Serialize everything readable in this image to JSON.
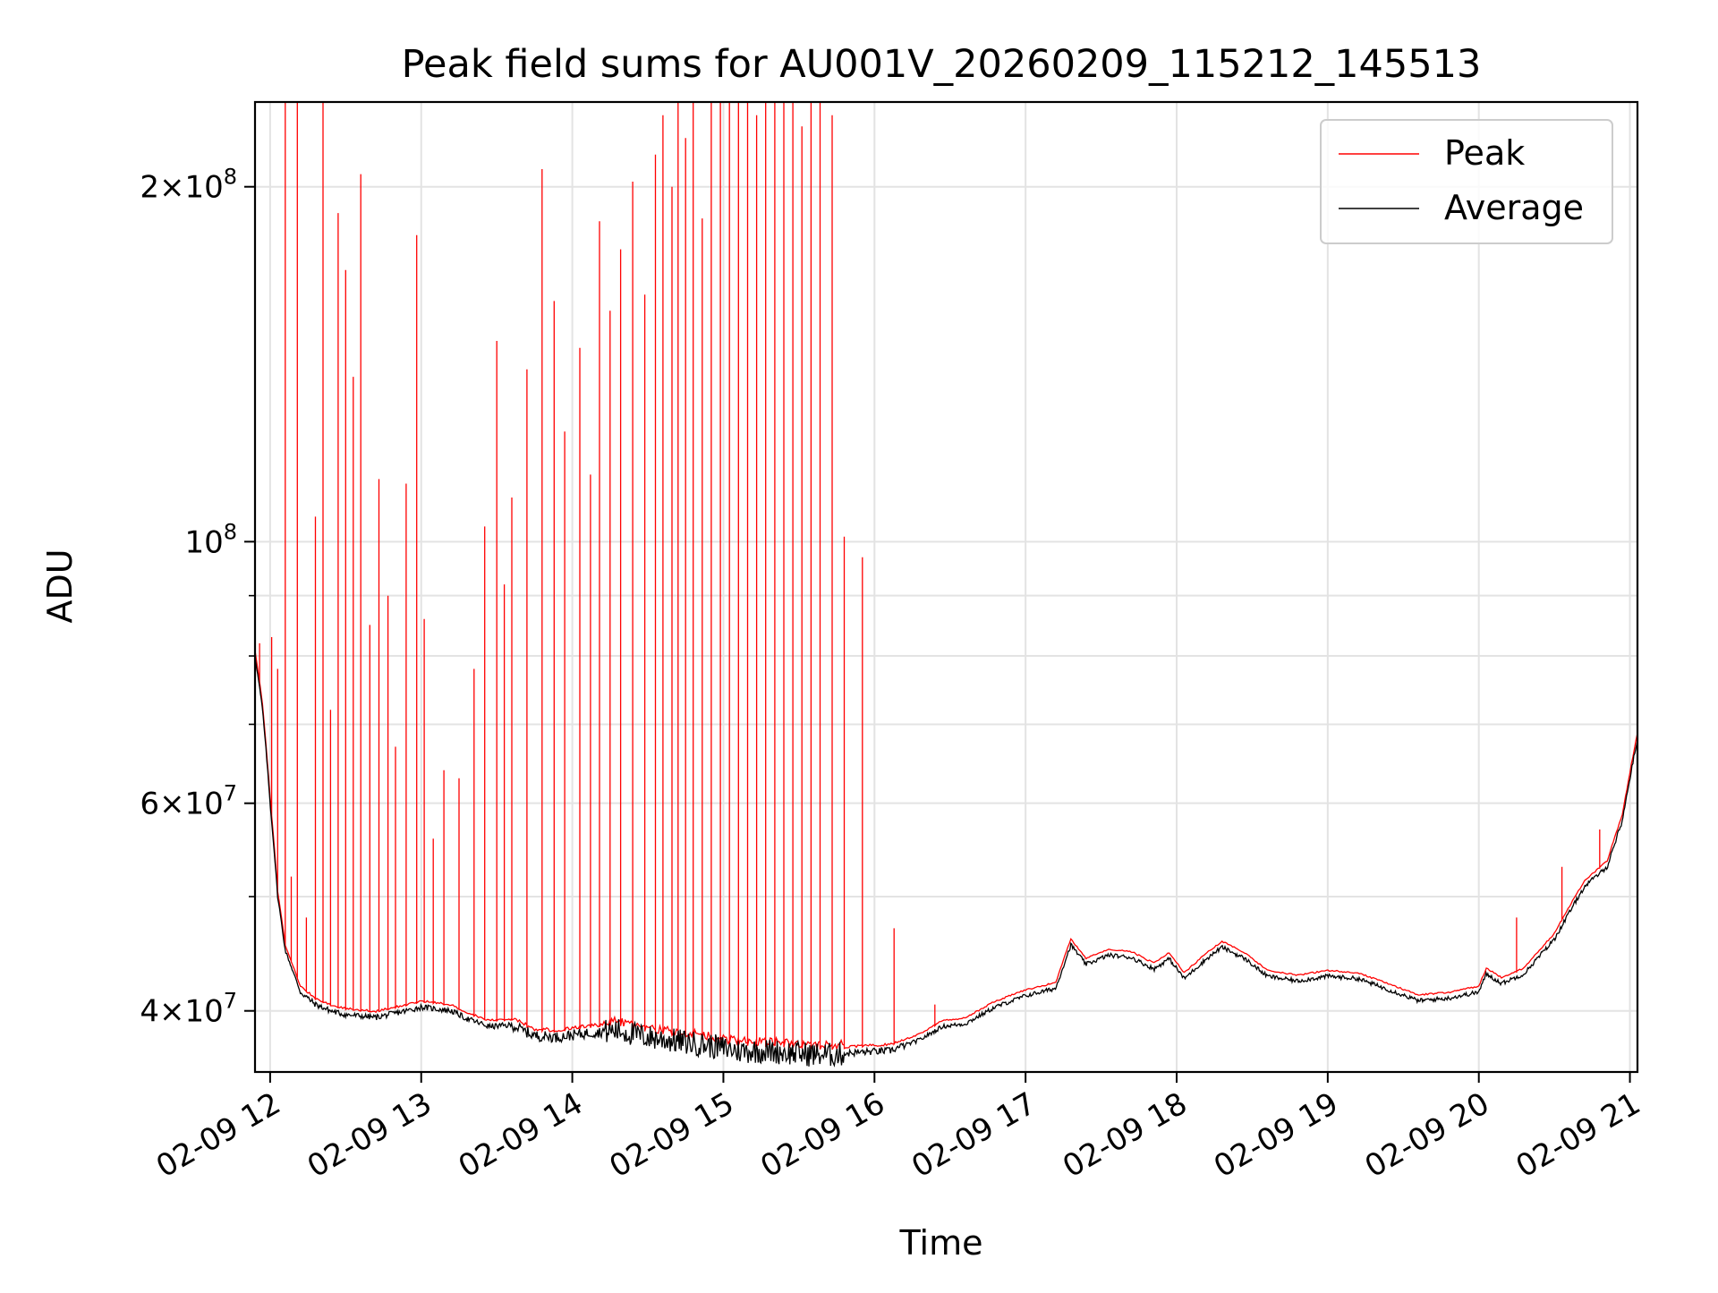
{
  "chart_data": {
    "type": "line",
    "title": "Peak field sums for AU001V_20260209_115212_145513",
    "xlabel": "Time",
    "ylabel": "ADU",
    "yscale": "log",
    "grid": true,
    "legend_position": "top-right",
    "x_unit": "hours (clock time on 02-09)",
    "xlim": [
      11.9,
      21.05
    ],
    "ylim": [
      35500000,
      236000000
    ],
    "x_ticks": [
      {
        "value": 12,
        "label": "02-09 12"
      },
      {
        "value": 13,
        "label": "02-09 13"
      },
      {
        "value": 14,
        "label": "02-09 14"
      },
      {
        "value": 15,
        "label": "02-09 15"
      },
      {
        "value": 16,
        "label": "02-09 16"
      },
      {
        "value": 17,
        "label": "02-09 17"
      },
      {
        "value": 18,
        "label": "02-09 18"
      },
      {
        "value": 19,
        "label": "02-09 19"
      },
      {
        "value": 20,
        "label": "02-09 20"
      },
      {
        "value": 21,
        "label": "02-09 21"
      }
    ],
    "y_ticks": [
      {
        "value": 40000000,
        "mantissa": "4",
        "base": "10",
        "exp": "7"
      },
      {
        "value": 60000000,
        "mantissa": "6",
        "base": "10",
        "exp": "7"
      },
      {
        "value": 100000000,
        "mantissa": "",
        "base": "10",
        "exp": "8"
      },
      {
        "value": 200000000,
        "mantissa": "2",
        "base": "10",
        "exp": "8"
      }
    ],
    "y_minor_ticks": [
      50000000,
      70000000,
      80000000,
      90000000
    ],
    "series": [
      {
        "name": "Peak",
        "color": "#ff0000",
        "baseline_from": "Average",
        "spikes": [
          [
            11.93,
            82000000
          ],
          [
            12.01,
            83000000
          ],
          [
            12.05,
            78000000
          ],
          [
            12.1,
            236000000
          ],
          [
            12.14,
            52000000
          ],
          [
            12.18,
            236000000
          ],
          [
            12.24,
            48000000
          ],
          [
            12.3,
            105000000
          ],
          [
            12.35,
            236000000
          ],
          [
            12.4,
            72000000
          ],
          [
            12.45,
            190000000
          ],
          [
            12.5,
            170000000
          ],
          [
            12.55,
            138000000
          ],
          [
            12.6,
            205000000
          ],
          [
            12.66,
            85000000
          ],
          [
            12.72,
            113000000
          ],
          [
            12.78,
            90000000
          ],
          [
            12.83,
            67000000
          ],
          [
            12.9,
            112000000
          ],
          [
            12.97,
            182000000
          ],
          [
            13.02,
            86000000
          ],
          [
            13.08,
            56000000
          ],
          [
            13.15,
            64000000
          ],
          [
            13.25,
            63000000
          ],
          [
            13.35,
            78000000
          ],
          [
            13.42,
            103000000
          ],
          [
            13.5,
            148000000
          ],
          [
            13.55,
            92000000
          ],
          [
            13.6,
            109000000
          ],
          [
            13.7,
            140000000
          ],
          [
            13.8,
            207000000
          ],
          [
            13.88,
            160000000
          ],
          [
            13.95,
            124000000
          ],
          [
            14.05,
            146000000
          ],
          [
            14.12,
            114000000
          ],
          [
            14.18,
            187000000
          ],
          [
            14.25,
            157000000
          ],
          [
            14.32,
            177000000
          ],
          [
            14.4,
            202000000
          ],
          [
            14.48,
            162000000
          ],
          [
            14.55,
            213000000
          ],
          [
            14.6,
            230000000
          ],
          [
            14.66,
            200000000
          ],
          [
            14.7,
            236000000
          ],
          [
            14.75,
            220000000
          ],
          [
            14.8,
            236000000
          ],
          [
            14.86,
            188000000
          ],
          [
            14.92,
            236000000
          ],
          [
            14.98,
            236000000
          ],
          [
            15.04,
            236000000
          ],
          [
            15.1,
            236000000
          ],
          [
            15.16,
            236000000
          ],
          [
            15.22,
            230000000
          ],
          [
            15.28,
            236000000
          ],
          [
            15.34,
            236000000
          ],
          [
            15.4,
            236000000
          ],
          [
            15.46,
            236000000
          ],
          [
            15.52,
            225000000
          ],
          [
            15.58,
            236000000
          ],
          [
            15.64,
            236000000
          ],
          [
            15.72,
            230000000
          ],
          [
            15.8,
            101000000
          ],
          [
            15.92,
            97000000
          ],
          [
            16.13,
            47000000
          ],
          [
            16.4,
            40500000
          ],
          [
            20.25,
            48000000
          ],
          [
            20.55,
            53000000
          ],
          [
            20.8,
            57000000
          ]
        ]
      },
      {
        "name": "Average",
        "color": "#000000",
        "points": [
          [
            11.9,
            80000000
          ],
          [
            11.95,
            72000000
          ],
          [
            12.0,
            60000000
          ],
          [
            12.05,
            50000000
          ],
          [
            12.1,
            45000000
          ],
          [
            12.2,
            41500000
          ],
          [
            12.3,
            40500000
          ],
          [
            12.4,
            40000000
          ],
          [
            12.5,
            39700000
          ],
          [
            12.7,
            39500000
          ],
          [
            12.9,
            40000000
          ],
          [
            13.0,
            40300000
          ],
          [
            13.2,
            40000000
          ],
          [
            13.3,
            39400000
          ],
          [
            13.45,
            38800000
          ],
          [
            13.6,
            38900000
          ],
          [
            13.75,
            38100000
          ],
          [
            13.9,
            38000000
          ],
          [
            14.1,
            38300000
          ],
          [
            14.3,
            38500000
          ],
          [
            14.5,
            38000000
          ],
          [
            14.7,
            37700000
          ],
          [
            14.9,
            37400000
          ],
          [
            15.1,
            37000000
          ],
          [
            15.3,
            37000000
          ],
          [
            15.5,
            36800000
          ],
          [
            15.7,
            36700000
          ],
          [
            15.9,
            36900000
          ],
          [
            16.1,
            37000000
          ],
          [
            16.3,
            37800000
          ],
          [
            16.45,
            38800000
          ],
          [
            16.6,
            39000000
          ],
          [
            16.8,
            40300000
          ],
          [
            17.0,
            41200000
          ],
          [
            17.2,
            41800000
          ],
          [
            17.3,
            45500000
          ],
          [
            17.4,
            43800000
          ],
          [
            17.55,
            44600000
          ],
          [
            17.7,
            44400000
          ],
          [
            17.85,
            43400000
          ],
          [
            17.95,
            44300000
          ],
          [
            18.05,
            42600000
          ],
          [
            18.2,
            44300000
          ],
          [
            18.3,
            45300000
          ],
          [
            18.45,
            44300000
          ],
          [
            18.6,
            42800000
          ],
          [
            18.8,
            42400000
          ],
          [
            19.0,
            42800000
          ],
          [
            19.2,
            42600000
          ],
          [
            19.4,
            41700000
          ],
          [
            19.6,
            40800000
          ],
          [
            19.8,
            41000000
          ],
          [
            20.0,
            41500000
          ],
          [
            20.05,
            43000000
          ],
          [
            20.15,
            42200000
          ],
          [
            20.3,
            43000000
          ],
          [
            20.5,
            46000000
          ],
          [
            20.7,
            51000000
          ],
          [
            20.85,
            53000000
          ],
          [
            20.95,
            58000000
          ],
          [
            21.05,
            68000000
          ]
        ]
      }
    ]
  }
}
